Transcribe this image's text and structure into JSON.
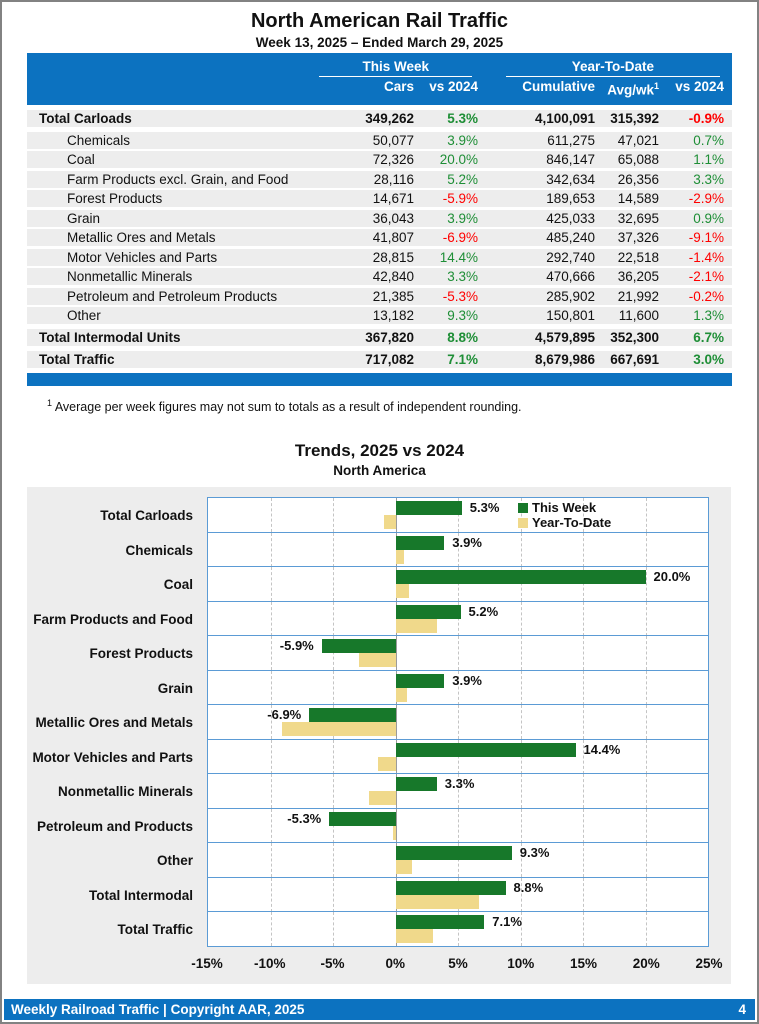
{
  "page": {
    "title": "North American Rail Traffic",
    "subtitle": "Week 13, 2025 – Ended March 29, 2025",
    "footnote_sup": "1",
    "footnote": "Average per week figures may not sum to totals as a result of independent rounding.",
    "footer_left": "Weekly Railroad Traffic | Copyright AAR, 2025",
    "footer_page": "4"
  },
  "colors": {
    "accent_blue": "#0C72C0",
    "bar_green": "#17782A",
    "bar_tan": "#F0D98B",
    "positive_text_green": "#1E8E36",
    "negative_text_red": "#FF0000",
    "row_stripe_gray": "#EDEDED",
    "chart_background_gray": "#EDEDED",
    "panel_border_blue": "#5B9BD5"
  },
  "table": {
    "group_this_week": "This Week",
    "group_ytd": "Year-To-Date",
    "col_cars": "Cars",
    "col_tw_vs": "vs 2024",
    "col_cumulative": "Cumulative",
    "col_avgwk": "Avg/wk",
    "col_avgwk_sup": "1",
    "col_ytd_vs": "vs 2024",
    "rows": [
      {
        "label": "Total Carloads",
        "bold": true,
        "indent": false,
        "cars": "349,262",
        "tw_vs": "5.3%",
        "tw_dir": "pos",
        "cum": "4,100,091",
        "avg": "315,392",
        "ytd_vs": "-0.9%",
        "ytd_dir": "neg"
      },
      {
        "label": "Chemicals",
        "bold": false,
        "indent": true,
        "cars": "50,077",
        "tw_vs": "3.9%",
        "tw_dir": "pos",
        "cum": "611,275",
        "avg": "47,021",
        "ytd_vs": "0.7%",
        "ytd_dir": "pos"
      },
      {
        "label": "Coal",
        "bold": false,
        "indent": true,
        "cars": "72,326",
        "tw_vs": "20.0%",
        "tw_dir": "pos",
        "cum": "846,147",
        "avg": "65,088",
        "ytd_vs": "1.1%",
        "ytd_dir": "pos"
      },
      {
        "label": "Farm Products excl. Grain, and Food",
        "bold": false,
        "indent": true,
        "cars": "28,116",
        "tw_vs": "5.2%",
        "tw_dir": "pos",
        "cum": "342,634",
        "avg": "26,356",
        "ytd_vs": "3.3%",
        "ytd_dir": "pos"
      },
      {
        "label": "Forest Products",
        "bold": false,
        "indent": true,
        "cars": "14,671",
        "tw_vs": "-5.9%",
        "tw_dir": "neg",
        "cum": "189,653",
        "avg": "14,589",
        "ytd_vs": "-2.9%",
        "ytd_dir": "neg"
      },
      {
        "label": "Grain",
        "bold": false,
        "indent": true,
        "cars": "36,043",
        "tw_vs": "3.9%",
        "tw_dir": "pos",
        "cum": "425,033",
        "avg": "32,695",
        "ytd_vs": "0.9%",
        "ytd_dir": "pos"
      },
      {
        "label": "Metallic Ores and Metals",
        "bold": false,
        "indent": true,
        "cars": "41,807",
        "tw_vs": "-6.9%",
        "tw_dir": "neg",
        "cum": "485,240",
        "avg": "37,326",
        "ytd_vs": "-9.1%",
        "ytd_dir": "neg"
      },
      {
        "label": "Motor Vehicles and Parts",
        "bold": false,
        "indent": true,
        "cars": "28,815",
        "tw_vs": "14.4%",
        "tw_dir": "pos",
        "cum": "292,740",
        "avg": "22,518",
        "ytd_vs": "-1.4%",
        "ytd_dir": "neg"
      },
      {
        "label": "Nonmetallic Minerals",
        "bold": false,
        "indent": true,
        "cars": "42,840",
        "tw_vs": "3.3%",
        "tw_dir": "pos",
        "cum": "470,666",
        "avg": "36,205",
        "ytd_vs": "-2.1%",
        "ytd_dir": "neg"
      },
      {
        "label": "Petroleum and Petroleum Products",
        "bold": false,
        "indent": true,
        "cars": "21,385",
        "tw_vs": "-5.3%",
        "tw_dir": "neg",
        "cum": "285,902",
        "avg": "21,992",
        "ytd_vs": "-0.2%",
        "ytd_dir": "neg"
      },
      {
        "label": "Other",
        "bold": false,
        "indent": true,
        "cars": "13,182",
        "tw_vs": "9.3%",
        "tw_dir": "pos",
        "cum": "150,801",
        "avg": "11,600",
        "ytd_vs": "1.3%",
        "ytd_dir": "pos"
      },
      {
        "label": "Total Intermodal Units",
        "bold": true,
        "indent": false,
        "cars": "367,820",
        "tw_vs": "8.8%",
        "tw_dir": "pos",
        "cum": "4,579,895",
        "avg": "352,300",
        "ytd_vs": "6.7%",
        "ytd_dir": "pos"
      },
      {
        "label": "Total Traffic",
        "bold": true,
        "indent": false,
        "cars": "717,082",
        "tw_vs": "7.1%",
        "tw_dir": "pos",
        "cum": "8,679,986",
        "avg": "667,691",
        "ytd_vs": "3.0%",
        "ytd_dir": "pos"
      }
    ]
  },
  "chart_data": {
    "type": "bar",
    "orientation": "horizontal",
    "title": "Trends, 2025 vs 2024",
    "subtitle": "North America",
    "categories": [
      "Total Carloads",
      "Chemicals",
      "Coal",
      "Farm Products and Food",
      "Forest Products",
      "Grain",
      "Metallic Ores and Metals",
      "Motor Vehicles and Parts",
      "Nonmetallic Minerals",
      "Petroleum and Products",
      "Other",
      "Total Intermodal",
      "Total Traffic"
    ],
    "series": [
      {
        "name": "This Week",
        "color": "#17782A",
        "values": [
          5.3,
          3.9,
          20.0,
          5.2,
          -5.9,
          3.9,
          -6.9,
          14.4,
          3.3,
          -5.3,
          9.3,
          8.8,
          7.1
        ]
      },
      {
        "name": "Year-To-Date",
        "color": "#F0D98B",
        "values": [
          -0.9,
          0.7,
          1.1,
          3.3,
          -2.9,
          0.9,
          -9.1,
          -1.4,
          -2.1,
          -0.2,
          1.3,
          6.7,
          3.0
        ]
      }
    ],
    "bar_labels": [
      "5.3%",
      "3.9%",
      "20.0%",
      "5.2%",
      "-5.9%",
      "3.9%",
      "-6.9%",
      "14.4%",
      "3.3%",
      "-5.3%",
      "9.3%",
      "8.8%",
      "7.1%"
    ],
    "xlim": [
      -15,
      25
    ],
    "x_tick_step": 5,
    "x_ticks": [
      "-15%",
      "-10%",
      "-5%",
      "0%",
      "5%",
      "10%",
      "15%",
      "20%",
      "25%"
    ],
    "legend_position": "top-right-inside",
    "grid": "dashed-vertical"
  }
}
